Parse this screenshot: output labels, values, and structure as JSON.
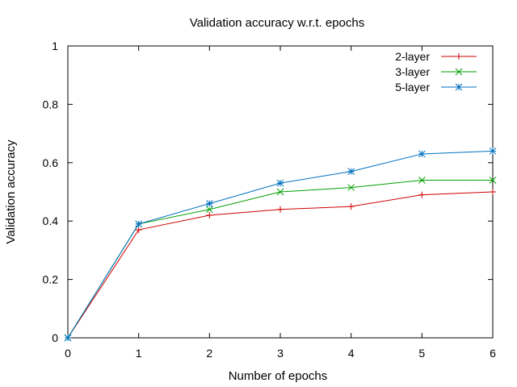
{
  "chart_data": {
    "type": "line",
    "title": "Validation accuracy w.r.t. epochs",
    "xlabel": "Number of epochs",
    "ylabel": "Validation accuracy",
    "xlim": [
      0,
      6
    ],
    "ylim": [
      0,
      1
    ],
    "xticks": [
      "0",
      "1",
      "2",
      "3",
      "4",
      "5",
      "6"
    ],
    "yticks": [
      "0",
      "0.2",
      "0.4",
      "0.6",
      "0.8",
      "1"
    ],
    "grid": false,
    "legend_position": "top-right",
    "x": [
      0,
      1,
      2,
      3,
      4,
      5,
      6
    ],
    "series": [
      {
        "name": "2-layer",
        "color": "#d00000",
        "marker": "plus",
        "values": [
          0.0,
          0.37,
          0.42,
          0.44,
          0.45,
          0.49,
          0.5
        ]
      },
      {
        "name": "3-layer",
        "color": "#00a000",
        "marker": "cross",
        "values": [
          0.0,
          0.39,
          0.44,
          0.5,
          0.515,
          0.54,
          0.54
        ]
      },
      {
        "name": "5-layer",
        "color": "#0070c0",
        "marker": "star",
        "values": [
          0.0,
          0.39,
          0.46,
          0.53,
          0.57,
          0.63,
          0.64
        ]
      }
    ]
  }
}
